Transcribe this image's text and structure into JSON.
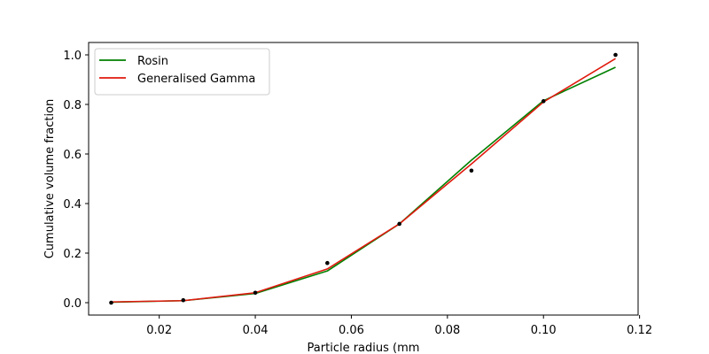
{
  "chart_data": {
    "type": "line",
    "title": "",
    "xlabel": "Particle radius (mm",
    "ylabel": "Cumulative volume fraction",
    "xlim": [
      0.0053,
      0.1197
    ],
    "ylim": [
      -0.05,
      1.05
    ],
    "xticks": [
      0.02,
      0.04,
      0.06,
      0.08,
      0.1,
      0.12
    ],
    "xtick_labels": [
      "0.02",
      "0.04",
      "0.06",
      "0.08",
      "0.10",
      "0.12"
    ],
    "yticks": [
      0.0,
      0.2,
      0.4,
      0.6,
      0.8,
      1.0
    ],
    "ytick_labels": [
      "0.0",
      "0.2",
      "0.4",
      "0.6",
      "0.8",
      "1.0"
    ],
    "grid": false,
    "legend_position": "top-left",
    "series": [
      {
        "name": "Rosin",
        "color": "#008000",
        "kind": "line",
        "x": [
          0.01,
          0.025,
          0.04,
          0.055,
          0.07,
          0.085,
          0.1,
          0.115
        ],
        "y": [
          0.002,
          0.008,
          0.037,
          0.128,
          0.318,
          0.575,
          0.815,
          0.95
        ]
      },
      {
        "name": "Generalised Gamma",
        "color": "#e01a0e",
        "kind": "line",
        "x": [
          0.01,
          0.025,
          0.04,
          0.055,
          0.07,
          0.085,
          0.1,
          0.115
        ],
        "y": [
          0.003,
          0.008,
          0.04,
          0.136,
          0.318,
          0.56,
          0.81,
          0.985
        ]
      },
      {
        "color": "#000000",
        "kind": "scatter",
        "x": [
          0.01,
          0.025,
          0.04,
          0.055,
          0.07,
          0.085,
          0.1,
          0.115
        ],
        "y": [
          0.0,
          0.01,
          0.04,
          0.16,
          0.318,
          0.533,
          0.813,
          1.0
        ]
      }
    ]
  }
}
